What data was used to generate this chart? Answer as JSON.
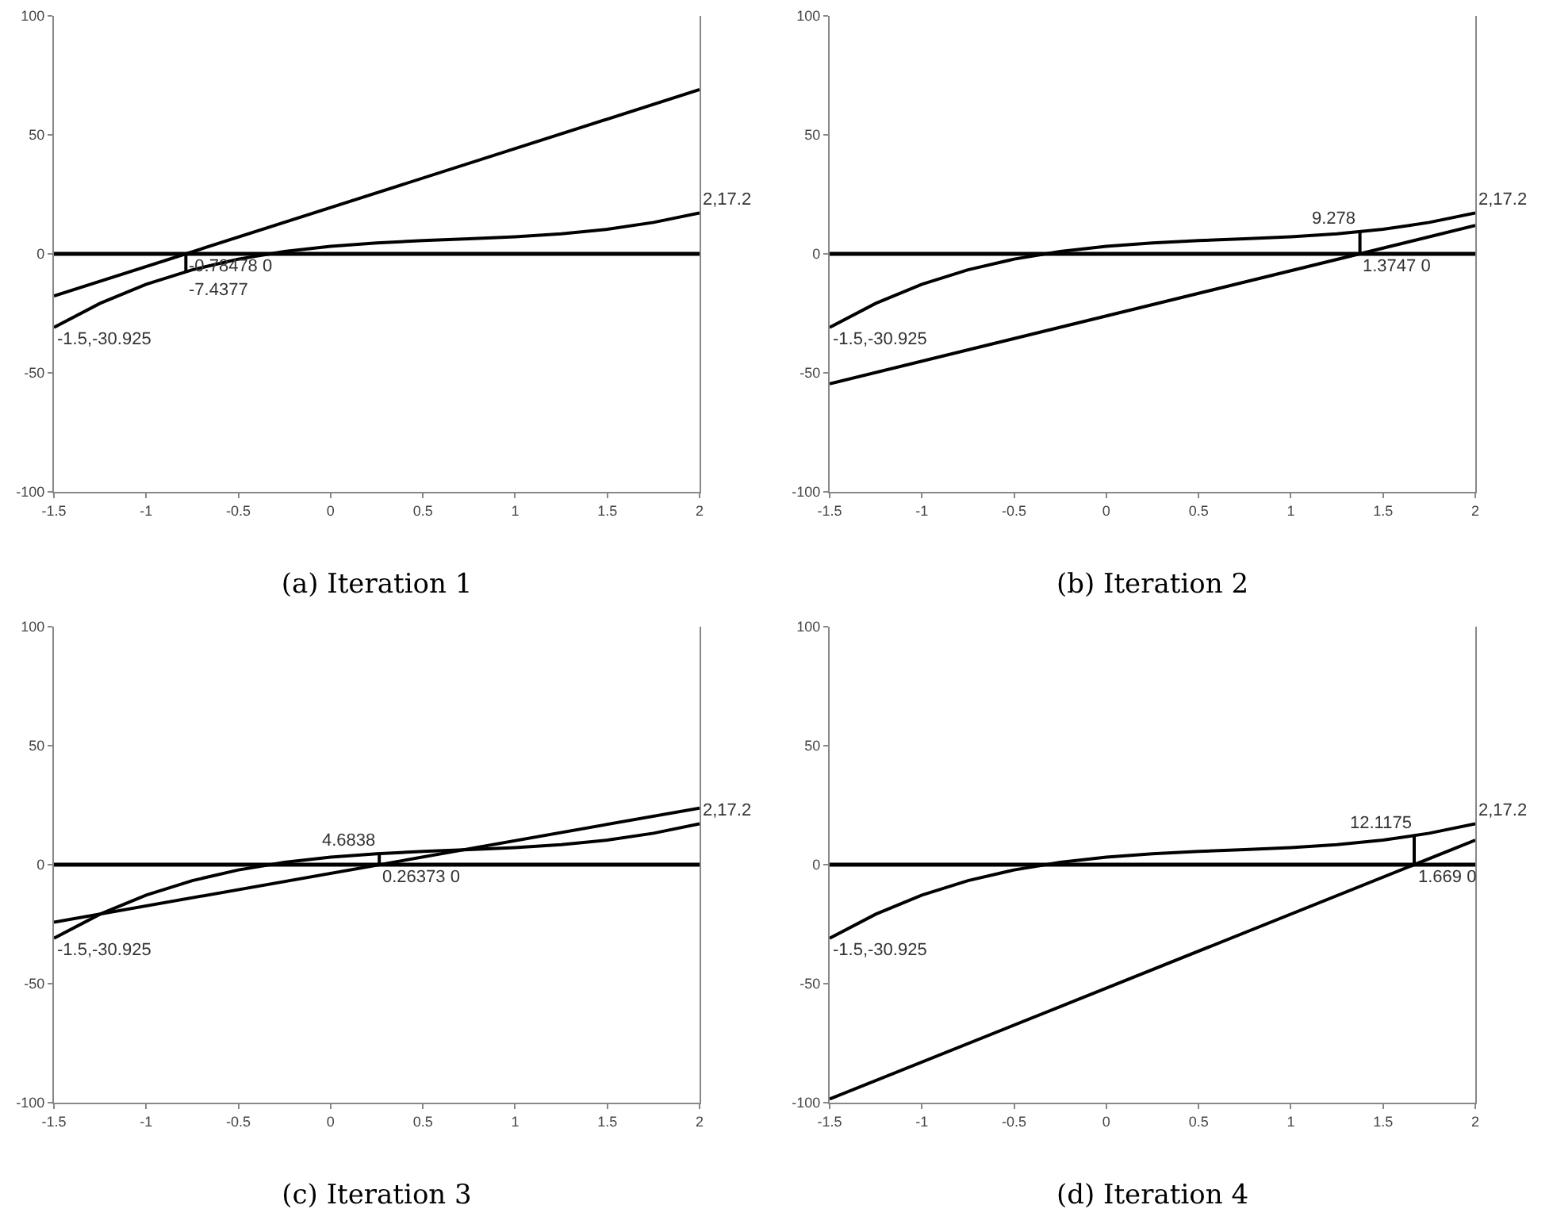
{
  "chart_data": [
    {
      "type": "line",
      "title": "(a) Iteration 1",
      "x": [
        -1.5,
        -1.25,
        -1,
        -0.75,
        -0.5,
        -0.25,
        0,
        0.25,
        0.5,
        0.75,
        1,
        1.25,
        1.5,
        1.75,
        2
      ],
      "xlim": [
        -1.5,
        2
      ],
      "xticks": [
        -1.5,
        -1,
        -0.5,
        0,
        0.5,
        1,
        1.5,
        2
      ],
      "ylim": [
        -100,
        100
      ],
      "yticks": [
        -100,
        -50,
        0,
        50,
        100
      ],
      "grid": false,
      "marker": "none",
      "line_style": "solid",
      "series": [
        {
          "color": "#000000",
          "values": [
            -30.925,
            -20.8,
            -12.8,
            -6.7,
            -2.2,
            1.0,
            3.2,
            4.6,
            5.6,
            6.3,
            7.2,
            8.4,
            10.3,
            13.2,
            17.2
          ]
        },
        {
          "color": "#000000",
          "x": [
            -1.5,
            2
          ],
          "values": [
            -17.7,
            69
          ]
        },
        {
          "color": "#000000",
          "x": [
            -0.78478,
            -0.78478
          ],
          "values": [
            0,
            -7.4377
          ]
        }
      ],
      "ref_lines": [
        {
          "axis": "y",
          "value": 0,
          "color": "#000000"
        }
      ],
      "annotations": [
        {
          "text": "-1.5,-30.925",
          "x": -1.5,
          "y": -30.925
        },
        {
          "text": "2,17.2",
          "x": 2,
          "y": 17.2
        },
        {
          "text": "-0.78478 0",
          "x": -0.78478,
          "y": 0
        },
        {
          "text": "-7.4377",
          "x": -0.78478,
          "y": -7.4377
        }
      ]
    },
    {
      "type": "line",
      "title": "(b) Iteration 2",
      "x": [
        -1.5,
        -1.25,
        -1,
        -0.75,
        -0.5,
        -0.25,
        0,
        0.25,
        0.5,
        0.75,
        1,
        1.25,
        1.5,
        1.75,
        2
      ],
      "xlim": [
        -1.5,
        2
      ],
      "xticks": [
        -1.5,
        -1,
        -0.5,
        0,
        0.5,
        1,
        1.5,
        2
      ],
      "ylim": [
        -100,
        100
      ],
      "yticks": [
        -100,
        -50,
        0,
        50,
        100
      ],
      "grid": false,
      "marker": "none",
      "line_style": "solid",
      "series": [
        {
          "color": "#000000",
          "values": [
            -30.925,
            -20.8,
            -12.8,
            -6.7,
            -2.2,
            1.0,
            3.2,
            4.6,
            5.6,
            6.3,
            7.2,
            8.4,
            10.3,
            13.2,
            17.2
          ]
        },
        {
          "color": "#000000",
          "x": [
            -1.5,
            2
          ],
          "values": [
            -54.6,
            11.9
          ]
        },
        {
          "color": "#000000",
          "x": [
            1.3747,
            1.3747
          ],
          "values": [
            0,
            9.278
          ]
        }
      ],
      "ref_lines": [
        {
          "axis": "y",
          "value": 0,
          "color": "#000000"
        }
      ],
      "annotations": [
        {
          "text": "-1.5,-30.925",
          "x": -1.5,
          "y": -30.925
        },
        {
          "text": "2,17.2",
          "x": 2,
          "y": 17.2
        },
        {
          "text": "1.3747 0",
          "x": 1.3747,
          "y": 0
        },
        {
          "text": "9.278",
          "x": 1.3747,
          "y": 9.278
        }
      ]
    },
    {
      "type": "line",
      "title": "(c) Iteration 3",
      "x": [
        -1.5,
        -1.25,
        -1,
        -0.75,
        -0.5,
        -0.25,
        0,
        0.25,
        0.5,
        0.75,
        1,
        1.25,
        1.5,
        1.75,
        2
      ],
      "xlim": [
        -1.5,
        2
      ],
      "xticks": [
        -1.5,
        -1,
        -0.5,
        0,
        0.5,
        1,
        1.5,
        2
      ],
      "ylim": [
        -100,
        100
      ],
      "yticks": [
        -100,
        -50,
        0,
        50,
        100
      ],
      "grid": false,
      "marker": "none",
      "line_style": "solid",
      "series": [
        {
          "color": "#000000",
          "values": [
            -30.925,
            -20.8,
            -12.8,
            -6.7,
            -2.2,
            1.0,
            3.2,
            4.6,
            5.6,
            6.3,
            7.2,
            8.4,
            10.3,
            13.2,
            17.2
          ]
        },
        {
          "color": "#000000",
          "x": [
            -1.5,
            2
          ],
          "values": [
            -24.2,
            23.8
          ]
        },
        {
          "color": "#000000",
          "x": [
            0.26373,
            0.26373
          ],
          "values": [
            0,
            4.6838
          ]
        }
      ],
      "ref_lines": [
        {
          "axis": "y",
          "value": 0,
          "color": "#000000"
        }
      ],
      "annotations": [
        {
          "text": "-1.5,-30.925",
          "x": -1.5,
          "y": -30.925
        },
        {
          "text": "2,17.2",
          "x": 2,
          "y": 17.2
        },
        {
          "text": "0.26373 0",
          "x": 0.26373,
          "y": 0
        },
        {
          "text": "4.6838",
          "x": 0.26373,
          "y": 4.6838
        }
      ]
    },
    {
      "type": "line",
      "title": "(d) Iteration 4",
      "x": [
        -1.5,
        -1.25,
        -1,
        -0.75,
        -0.5,
        -0.25,
        0,
        0.25,
        0.5,
        0.75,
        1,
        1.25,
        1.5,
        1.75,
        2
      ],
      "xlim": [
        -1.5,
        2
      ],
      "xticks": [
        -1.5,
        -1,
        -0.5,
        0,
        0.5,
        1,
        1.5,
        2
      ],
      "ylim": [
        -100,
        100
      ],
      "yticks": [
        -100,
        -50,
        0,
        50,
        100
      ],
      "grid": false,
      "marker": "none",
      "line_style": "solid",
      "series": [
        {
          "color": "#000000",
          "values": [
            -30.925,
            -20.8,
            -12.8,
            -6.7,
            -2.2,
            1.0,
            3.2,
            4.6,
            5.6,
            6.3,
            7.2,
            8.4,
            10.3,
            13.2,
            17.2
          ]
        },
        {
          "color": "#000000",
          "x": [
            -1.5,
            2
          ],
          "values": [
            -98.5,
            10.3
          ]
        },
        {
          "color": "#000000",
          "x": [
            1.669,
            1.669
          ],
          "values": [
            0,
            12.1175
          ]
        }
      ],
      "ref_lines": [
        {
          "axis": "y",
          "value": 0,
          "color": "#000000"
        }
      ],
      "annotations": [
        {
          "text": "-1.5,-30.925",
          "x": -1.5,
          "y": -30.925
        },
        {
          "text": "2,17.2",
          "x": 2,
          "y": 17.2
        },
        {
          "text": "1.669 0",
          "x": 1.669,
          "y": 0
        },
        {
          "text": "12.1175",
          "x": 1.669,
          "y": 12.1175
        }
      ]
    }
  ]
}
